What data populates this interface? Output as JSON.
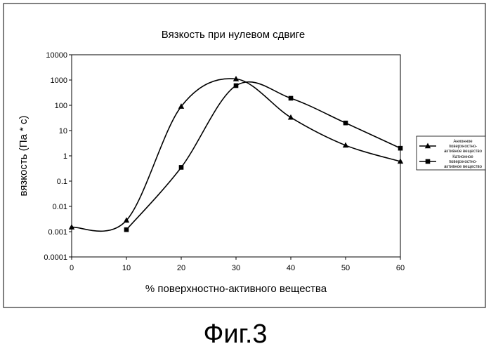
{
  "chart_data": {
    "type": "line",
    "title": "Вязкость при нулевом сдвиге",
    "xlabel": "% поверхностно-активного вещества",
    "ylabel": "вязкость (Па * с)",
    "x_ticks": [
      "0",
      "10",
      "20",
      "30",
      "40",
      "50",
      "60"
    ],
    "y_ticks": [
      "0.0001",
      "0.001",
      "0.01",
      "0.1",
      "1",
      "10",
      "100",
      "1000",
      "10000"
    ],
    "xlim": [
      0,
      60
    ],
    "ylim": [
      0.0001,
      10000
    ],
    "yscale": "log",
    "grid": false,
    "legend_position": "right",
    "series": [
      {
        "name": "Анионное поверхностно-активное вещество",
        "legend_lines": [
          "Анионное",
          "поверхностно-",
          "активное вещество"
        ],
        "marker": "triangle",
        "x": [
          0,
          10,
          20,
          30,
          40,
          50,
          60
        ],
        "y": [
          0.0015,
          0.0028,
          90,
          1100,
          33,
          2.6,
          0.6
        ]
      },
      {
        "name": "Катионное поверхностно-активное вещество",
        "legend_lines": [
          "Катионное",
          "поверхностно-",
          "активное вещество"
        ],
        "marker": "square",
        "x": [
          10,
          20,
          30,
          40,
          50,
          60
        ],
        "y": [
          0.0012,
          0.35,
          600,
          190,
          20,
          2
        ]
      }
    ]
  },
  "caption": "Фиг.3"
}
